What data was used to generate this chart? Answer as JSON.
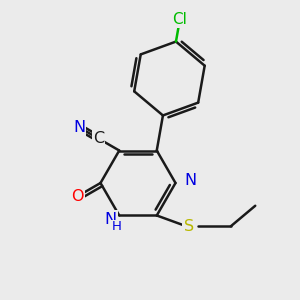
{
  "background_color": "#ebebeb",
  "bond_color": "#1a1a1a",
  "bond_width": 1.8,
  "atom_colors": {
    "N": "#0000e0",
    "O": "#ff0000",
    "S": "#b8b800",
    "Cl": "#00bb00",
    "C": "#1a1a1a",
    "N_cn": "#0000e0"
  },
  "font_size": 11.5,
  "font_size_h": 9.5
}
